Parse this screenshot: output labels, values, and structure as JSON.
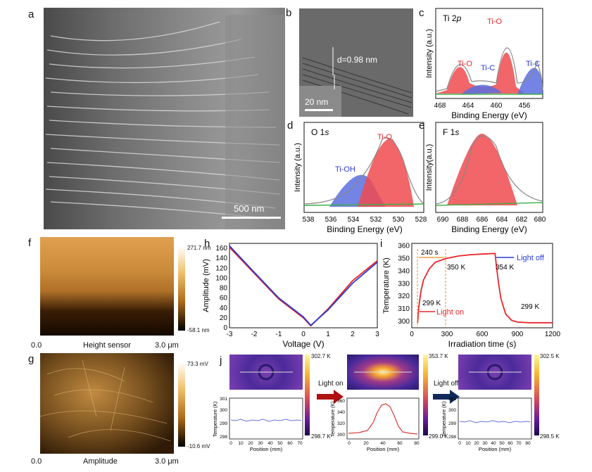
{
  "panels": {
    "a": {
      "label": "a",
      "scalebar": "500 nm"
    },
    "b": {
      "label": "b",
      "d_spacing": "d=0.98 nm",
      "scalebar": "20 nm"
    },
    "c": {
      "label": "c",
      "title_main": "Ti 2",
      "title_italic": "p",
      "peaks": [
        "Ti-O",
        "Ti-O",
        "Ti-C",
        "Ti-C"
      ],
      "xlabel": "Binding Energy (eV)",
      "ylabel": "Intensity (a.u.)",
      "xticks": [
        "468",
        "464",
        "460",
        "456"
      ]
    },
    "d": {
      "label": "d",
      "title_main": "O 1",
      "title_italic": "s",
      "peaks": [
        "Ti-O",
        "Ti-OH"
      ],
      "xlabel": "Binding Energy (eV)",
      "ylabel": "Intensity (a.u.)",
      "xticks": [
        "538",
        "536",
        "534",
        "532",
        "530",
        "528"
      ]
    },
    "e": {
      "label": "e",
      "title_main": "F 1",
      "title_italic": "s",
      "xlabel": "Binding Energy (eV)",
      "ylabel": "Intensity(a.u.)",
      "xticks": [
        "690",
        "688",
        "686",
        "684",
        "682",
        "680"
      ]
    },
    "f": {
      "label": "f",
      "cb_max": "271.7 nm",
      "cb_min": "-58.1 nm",
      "xlabel": "Height sensor",
      "x0": "0.0",
      "x1": "3.0 μm"
    },
    "g": {
      "label": "g",
      "cb_max": "73.3 mV",
      "cb_min": "-10.6 mV",
      "xlabel": "Amplitude",
      "x0": "0.0",
      "x1": "3.0 μm"
    },
    "h": {
      "label": "h",
      "xlabel": "Voltage (V)",
      "ylabel": "Amplitude (mV)",
      "xticks": [
        "-3",
        "-2",
        "-1",
        "0",
        "1",
        "2",
        "3"
      ],
      "yticks": [
        "0",
        "20",
        "40",
        "60",
        "80",
        "100",
        "120",
        "140",
        "160"
      ]
    },
    "i": {
      "label": "i",
      "xlabel": "Irradiation time (s)",
      "ylabel": "Temperature (K)",
      "xticks": [
        "0",
        "300",
        "600",
        "900",
        "1200"
      ],
      "yticks": [
        "300",
        "310",
        "320",
        "330",
        "340",
        "350",
        "360"
      ],
      "annotations": {
        "t240": "240 s",
        "k350": "350 K",
        "k354": "354 K",
        "k299a": "299 K",
        "k299b": "299 K",
        "light_off": "Light off",
        "light_on": "Light on"
      }
    },
    "j": {
      "label": "j",
      "light_on": "Light on",
      "light_off": "Light off",
      "thermo": [
        {
          "max": "302.7 K",
          "min": "298.7 K"
        },
        {
          "max": "353.7 K",
          "min": "299.0 K"
        },
        {
          "max": "302.5 K",
          "min": "298.5 K"
        }
      ],
      "ylabel": "Temperature (K)",
      "xlabel": "Position (mm)",
      "plots": [
        {
          "yticks": [
            "298",
            "299",
            "300",
            "301"
          ],
          "xticks": [
            "0",
            "10",
            "20",
            "30",
            "40",
            "50",
            "60",
            "70"
          ]
        },
        {
          "yticks": [
            "300",
            "320",
            "340",
            "360"
          ],
          "xticks": [
            "0",
            "20",
            "40",
            "60",
            "80"
          ]
        },
        {
          "yticks": [
            "298",
            "299",
            "300",
            "301"
          ],
          "xticks": [
            "0",
            "10",
            "20",
            "30",
            "40",
            "50",
            "60",
            "70",
            "80"
          ]
        }
      ]
    }
  },
  "colors": {
    "red": "#e8262c",
    "blue": "#2b3bd6",
    "green": "#3cb043",
    "fill_red": "#f04a4f",
    "fill_blue": "#5b6ee0"
  },
  "chart_data": [
    {
      "type": "line",
      "panel": "h",
      "xlabel": "Voltage (V)",
      "ylabel": "Amplitude (mV)",
      "xlim": [
        -3,
        3
      ],
      "ylim": [
        0,
        170
      ],
      "series": [
        {
          "color": "red",
          "x": [
            -3,
            -2,
            -1,
            0,
            0.3,
            1,
            2,
            3
          ],
          "y": [
            162,
            110,
            58,
            20,
            4,
            38,
            95,
            135
          ]
        },
        {
          "color": "blue",
          "x": [
            -3,
            -2,
            -1,
            0,
            0.3,
            1,
            2,
            3
          ],
          "y": [
            165,
            112,
            60,
            22,
            5,
            36,
            90,
            132
          ]
        }
      ]
    },
    {
      "type": "line",
      "panel": "i",
      "xlabel": "Irradiation time (s)",
      "ylabel": "Temperature (K)",
      "xlim": [
        0,
        1200
      ],
      "ylim": [
        295,
        362
      ],
      "series": [
        {
          "color": "red",
          "x": [
            50,
            60,
            80,
            100,
            150,
            200,
            290,
            400,
            500,
            600,
            710,
            720,
            740,
            760,
            800,
            850,
            900,
            1000,
            1200
          ],
          "y": [
            299,
            312,
            325,
            333,
            342,
            347,
            350,
            352,
            353,
            353.5,
            354,
            345,
            330,
            318,
            306,
            301,
            299.5,
            299,
            299
          ]
        }
      ]
    }
  ]
}
